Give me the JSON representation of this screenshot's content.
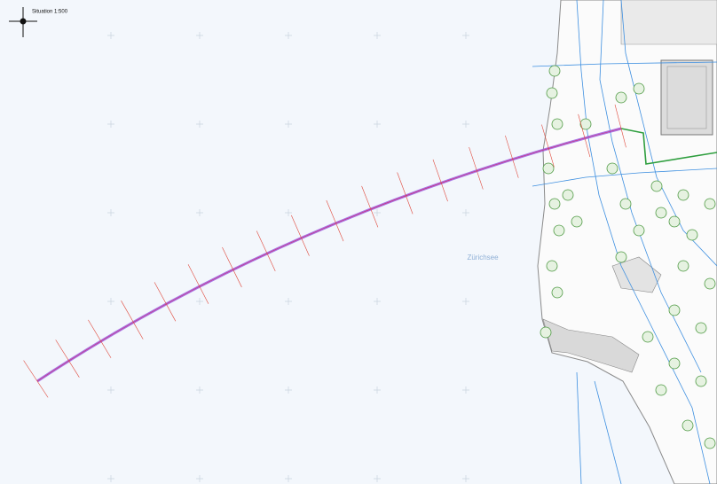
{
  "header": {
    "scale_label": "Situation 1:500"
  },
  "labels": {
    "lake": "Zürichsee"
  }
}
